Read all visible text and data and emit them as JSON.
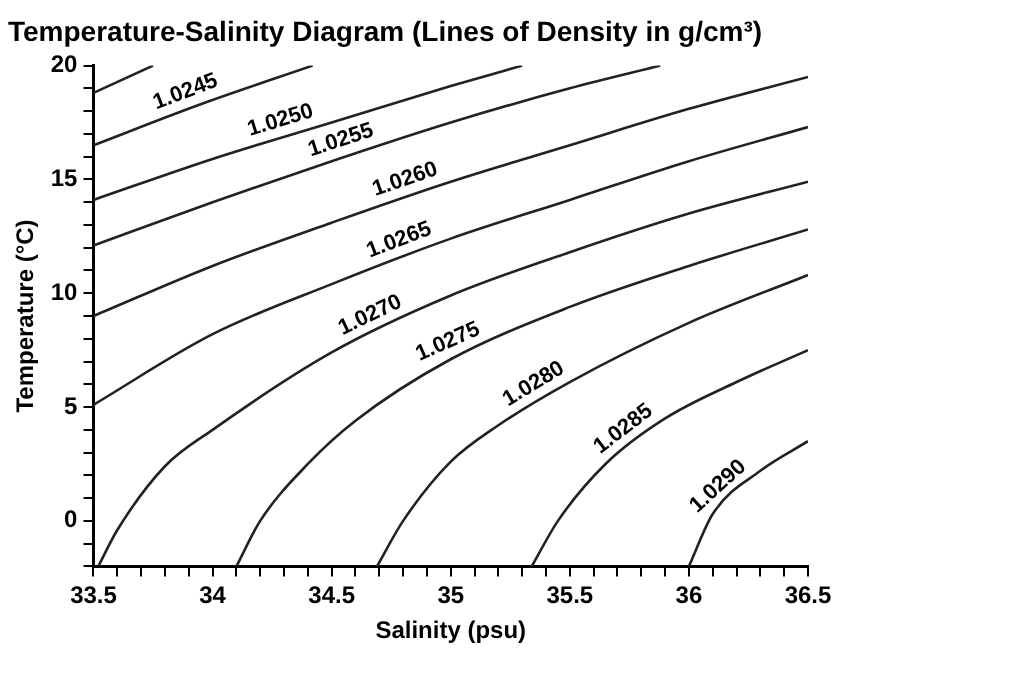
{
  "chart_data": {
    "type": "line",
    "title": "Temperature-Salinity Diagram (Lines of Density in g/cm³)",
    "xlabel": "Salinity (psu)",
    "ylabel": "Temperature (°C)",
    "xlim": [
      33.5,
      36.5
    ],
    "ylim": [
      -2,
      20
    ],
    "xticks": [
      33.5,
      {
        "value": 33.6,
        "label": null
      },
      {
        "value": 33.7,
        "label": null
      },
      {
        "value": 33.8,
        "label": null
      },
      {
        "value": 33.9,
        "label": null
      },
      34,
      {
        "value": 34.1,
        "label": null
      },
      {
        "value": 34.2,
        "label": null
      },
      {
        "value": 34.3,
        "label": null
      },
      {
        "value": 34.4,
        "label": null
      },
      34.5,
      {
        "value": 34.6,
        "label": null
      },
      {
        "value": 34.7,
        "label": null
      },
      {
        "value": 34.8,
        "label": null
      },
      {
        "value": 34.9,
        "label": null
      },
      35,
      {
        "value": 35.1,
        "label": null
      },
      {
        "value": 35.2,
        "label": null
      },
      {
        "value": 35.3,
        "label": null
      },
      {
        "value": 35.4,
        "label": null
      },
      35.5,
      {
        "value": 35.6,
        "label": null
      },
      {
        "value": 35.7,
        "label": null
      },
      {
        "value": 35.8,
        "label": null
      },
      {
        "value": 35.9,
        "label": null
      },
      36,
      {
        "value": 36.1,
        "label": null
      },
      {
        "value": 36.2,
        "label": null
      },
      {
        "value": 36.3,
        "label": null
      },
      {
        "value": 36.4,
        "label": null
      },
      36.5
    ],
    "yticks": [
      {
        "value": -2,
        "label": null
      },
      {
        "value": -1,
        "label": null
      },
      0,
      {
        "value": 1,
        "label": null
      },
      {
        "value": 2,
        "label": null
      },
      {
        "value": 3,
        "label": null
      },
      {
        "value": 4,
        "label": null
      },
      5,
      {
        "value": 6,
        "label": null
      },
      {
        "value": 7,
        "label": null
      },
      {
        "value": 8,
        "label": null
      },
      {
        "value": 9,
        "label": null
      },
      10,
      {
        "value": 11,
        "label": null
      },
      {
        "value": 12,
        "label": null
      },
      {
        "value": 13,
        "label": null
      },
      {
        "value": 14,
        "label": null
      },
      15,
      {
        "value": 16,
        "label": null
      },
      {
        "value": 17,
        "label": null
      },
      {
        "value": 18,
        "label": null
      },
      {
        "value": 19,
        "label": null
      },
      20
    ],
    "grid": false,
    "legend": false,
    "marker": "none",
    "series": [
      {
        "color": "#222222",
        "x": [
          33.5,
          33.75
        ],
        "values": [
          18.8,
          20
        ]
      },
      {
        "name": "1.0245",
        "color": "#222222",
        "x": [
          33.5,
          33.95,
          34.42
        ],
        "values": [
          16.5,
          18.3,
          20
        ]
      },
      {
        "name": "1.0250",
        "color": "#222222",
        "x": [
          33.5,
          34,
          34.5,
          35,
          35.3
        ],
        "values": [
          14.1,
          15.9,
          17.5,
          19.1,
          20
        ]
      },
      {
        "name": "1.0255",
        "color": "#222222",
        "x": [
          33.5,
          34,
          34.5,
          35,
          35.5,
          35.88
        ],
        "values": [
          12.1,
          14,
          15.8,
          17.5,
          19,
          20
        ]
      },
      {
        "name": "1.0260",
        "color": "#222222",
        "x": [
          33.5,
          34,
          34.5,
          35,
          35.5,
          36,
          36.5
        ],
        "values": [
          9,
          11.2,
          13.1,
          14.9,
          16.5,
          18.1,
          19.5
        ]
      },
      {
        "name": "1.0265",
        "color": "#222222",
        "x": [
          33.5,
          34,
          34.5,
          35,
          35.5,
          36,
          36.5
        ],
        "values": [
          5.1,
          8.2,
          10.4,
          12.4,
          14.1,
          15.8,
          17.3
        ]
      },
      {
        "name": "1.0270",
        "color": "#222222",
        "x": [
          33.52,
          33.6,
          33.8,
          34,
          34.5,
          35,
          35.5,
          36,
          36.5
        ],
        "values": [
          -2,
          -0.4,
          2.4,
          4,
          7.4,
          9.9,
          11.8,
          13.5,
          14.9
        ]
      },
      {
        "name": "1.0275",
        "color": "#222222",
        "x": [
          34.1,
          34.2,
          34.4,
          34.6,
          35,
          35.5,
          36,
          36.5
        ],
        "values": [
          -2,
          0,
          2.5,
          4.4,
          7.1,
          9.4,
          11.2,
          12.8
        ]
      },
      {
        "name": "1.0280",
        "color": "#222222",
        "x": [
          34.69,
          34.8,
          35,
          35.2,
          35.5,
          36,
          36.5
        ],
        "values": [
          -2,
          0,
          2.6,
          4.2,
          6.1,
          8.7,
          10.8
        ]
      },
      {
        "name": "1.0285",
        "color": "#222222",
        "x": [
          35.34,
          35.45,
          35.65,
          35.9,
          36.2,
          36.5
        ],
        "values": [
          -2,
          0,
          2.5,
          4.5,
          6.1,
          7.5
        ]
      },
      {
        "name": "1.0290",
        "color": "#222222",
        "x": [
          36,
          36.1,
          36.3,
          36.5
        ],
        "values": [
          -2,
          0.3,
          2.2,
          3.5
        ]
      }
    ]
  }
}
